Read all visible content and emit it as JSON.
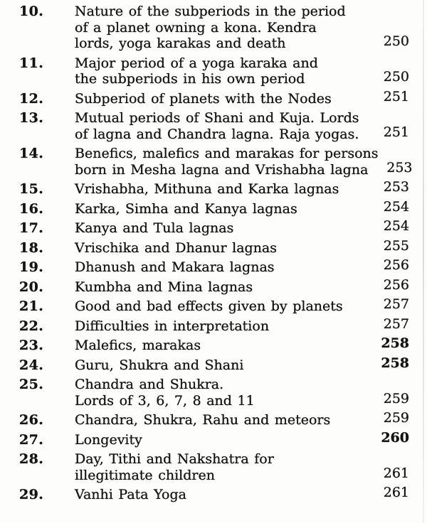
{
  "page": {
    "background": "#fdfdfc",
    "text_color": "#141414"
  },
  "toc": {
    "entries": [
      {
        "num": "10.",
        "lines": [
          "Nature of the subperiods in the period",
          "of a planet owning a kona. Kendra",
          "lords, yoga karakas and death"
        ],
        "page": "250",
        "page_bold": false
      },
      {
        "num": "11.",
        "lines": [
          "Major period of a yoga karaka and",
          "the subperiods in his own period"
        ],
        "page": "250",
        "page_bold": false
      },
      {
        "num": "12.",
        "lines": [
          "Subperiod of planets with the Nodes"
        ],
        "page": "251",
        "page_bold": false
      },
      {
        "num": "13.",
        "lines": [
          "Mutual periods of Shani and Kuja. Lords",
          "of lagna and Chandra lagna. Raja yogas."
        ],
        "page": "251",
        "page_bold": false
      },
      {
        "num": "14.",
        "lines": [
          "Benefics, malefics and marakas for persons",
          "born in Mesha lagna and Vrishabha lagna"
        ],
        "page": "253",
        "page_bold": false
      },
      {
        "num": "15.",
        "lines": [
          "Vrishabha, Mithuna and Karka lagnas"
        ],
        "page": "253",
        "page_bold": false
      },
      {
        "num": "16.",
        "lines": [
          "Karka, Simha and Kanya lagnas"
        ],
        "page": "254",
        "page_bold": false
      },
      {
        "num": "17.",
        "lines": [
          "Kanya and Tula lagnas"
        ],
        "page": "254",
        "page_bold": false
      },
      {
        "num": "18.",
        "lines": [
          "Vrischika and Dhanur lagnas"
        ],
        "page": "255",
        "page_bold": false
      },
      {
        "num": "19.",
        "lines": [
          "Dhanush and Makara lagnas"
        ],
        "page": "256",
        "page_bold": false
      },
      {
        "num": "20.",
        "lines": [
          "Kumbha and Mina lagnas"
        ],
        "page": "256",
        "page_bold": false
      },
      {
        "num": "21.",
        "lines": [
          "Good and bad effects given by planets"
        ],
        "page": "257",
        "page_bold": false
      },
      {
        "num": "22.",
        "lines": [
          "Difficulties in interpretation"
        ],
        "page": "257",
        "page_bold": false
      },
      {
        "num": "23.",
        "lines": [
          "Malefics, marakas"
        ],
        "page": "258",
        "page_bold": true
      },
      {
        "num": "24.",
        "lines": [
          "Guru, Shukra and Shani"
        ],
        "page": "258",
        "page_bold": true
      },
      {
        "num": "25.",
        "lines": [
          "Chandra and Shukra.",
          "Lords of 3, 6, 7, 8 and 11"
        ],
        "page": "259",
        "page_bold": false
      },
      {
        "num": "26.",
        "lines": [
          "Chandra, Shukra, Rahu and meteors"
        ],
        "page": "259",
        "page_bold": false
      },
      {
        "num": "27.",
        "lines": [
          "Longevity"
        ],
        "page": "260",
        "page_bold": true
      },
      {
        "num": "28.",
        "lines": [
          "Day, Tithi and Nakshatra for",
          "illegitimate children"
        ],
        "page": "261",
        "page_bold": false
      },
      {
        "num": "29.",
        "lines": [
          "Vanhi Pata Yoga"
        ],
        "page": "261",
        "page_bold": false
      }
    ]
  }
}
